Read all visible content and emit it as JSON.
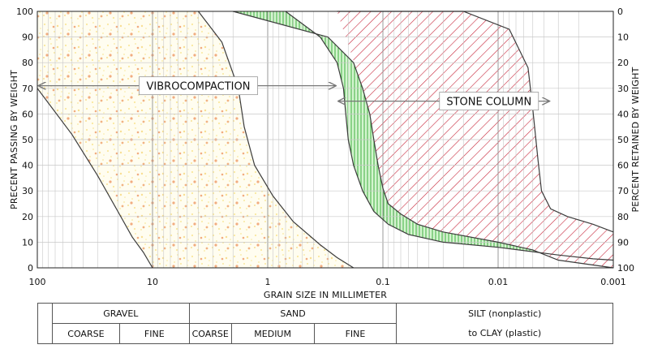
{
  "chart_data": {
    "type": "area",
    "title": "",
    "xlabel": "GRAIN SIZE IN MILLIMETER",
    "ylabel_left": "PRECENT PASSING BY WEIGHT",
    "ylabel_right": "PERCENT RETAINED BY WEIGHT",
    "x_scale": "log",
    "x_reversed": true,
    "xlim": [
      100,
      0.001
    ],
    "x_ticks": [
      "100",
      "10",
      "1",
      "0.1",
      "0.01",
      "0.001"
    ],
    "ylim": [
      0,
      100
    ],
    "y_ticks_left": [
      "0",
      "10",
      "20",
      "30",
      "40",
      "50",
      "60",
      "70",
      "80",
      "90",
      "100"
    ],
    "y_ticks_right": [
      "0",
      "10",
      "20",
      "30",
      "40",
      "50",
      "60",
      "70",
      "80",
      "90",
      "100"
    ],
    "grid": true,
    "curves": [
      {
        "id": "vibro_coarse",
        "points": [
          [
            100,
            70
          ],
          [
            50,
            52
          ],
          [
            30,
            36
          ],
          [
            20,
            22
          ],
          [
            15,
            12
          ],
          [
            12,
            6
          ],
          [
            10,
            0
          ]
        ]
      },
      {
        "id": "vibro_fine",
        "points": [
          [
            4,
            100
          ],
          [
            2.5,
            88
          ],
          [
            1.8,
            70
          ],
          [
            1.6,
            55
          ],
          [
            1.3,
            40
          ],
          [
            0.9,
            28
          ],
          [
            0.6,
            18
          ],
          [
            0.35,
            9
          ],
          [
            0.25,
            4
          ],
          [
            0.18,
            0
          ]
        ]
      },
      {
        "id": "stone_fine",
        "points": [
          [
            0.7,
            100
          ],
          [
            0.35,
            90
          ],
          [
            0.25,
            80
          ],
          [
            0.22,
            70
          ],
          [
            0.21,
            60
          ],
          [
            0.2,
            50
          ],
          [
            0.18,
            40
          ],
          [
            0.15,
            30
          ],
          [
            0.12,
            22
          ],
          [
            0.09,
            17
          ],
          [
            0.06,
            13
          ],
          [
            0.03,
            10
          ],
          [
            0.01,
            8
          ],
          [
            0.003,
            5
          ],
          [
            0.0015,
            3.5
          ],
          [
            0.001,
            3
          ]
        ]
      },
      {
        "id": "stone_coarse",
        "points": [
          [
            2,
            100
          ],
          [
            0.3,
            90
          ],
          [
            0.18,
            80
          ],
          [
            0.15,
            70
          ],
          [
            0.13,
            60
          ],
          [
            0.12,
            50
          ],
          [
            0.11,
            40
          ],
          [
            0.1,
            31
          ],
          [
            0.09,
            25
          ],
          [
            0.07,
            21
          ],
          [
            0.05,
            17
          ],
          [
            0.03,
            14
          ],
          [
            0.01,
            10
          ],
          [
            0.005,
            7
          ],
          [
            0.003,
            3
          ],
          [
            0.001,
            0
          ]
        ]
      },
      {
        "id": "clay_fine",
        "points": [
          [
            0.25,
            100
          ],
          [
            0.02,
            100
          ],
          [
            0.008,
            93
          ],
          [
            0.0055,
            78
          ],
          [
            0.005,
            62
          ],
          [
            0.0045,
            42
          ],
          [
            0.0042,
            30
          ],
          [
            0.0035,
            23
          ],
          [
            0.0025,
            20
          ],
          [
            0.0015,
            17
          ],
          [
            0.001,
            14
          ]
        ]
      }
    ],
    "regions": [
      {
        "name": "VIBROCOMPACTION",
        "color": "#f3a13a",
        "range_arrow": {
          "y": 71,
          "from": 100,
          "to": 0.25
        }
      },
      {
        "name": "STONE COLUMN",
        "color": "#2fa830",
        "range_arrow": {
          "y": 65,
          "from": 0.25,
          "to": 0.0035
        }
      },
      {
        "name": "",
        "color": "#c8283c"
      }
    ]
  },
  "table": {
    "rows": [
      [
        "GRAVEL",
        "SAND",
        "SILT (nonplastic)"
      ],
      [
        "COARSE",
        "FINE",
        "COARSE",
        "MEDIUM",
        "FINE",
        "to CLAY (plastic)"
      ]
    ]
  }
}
